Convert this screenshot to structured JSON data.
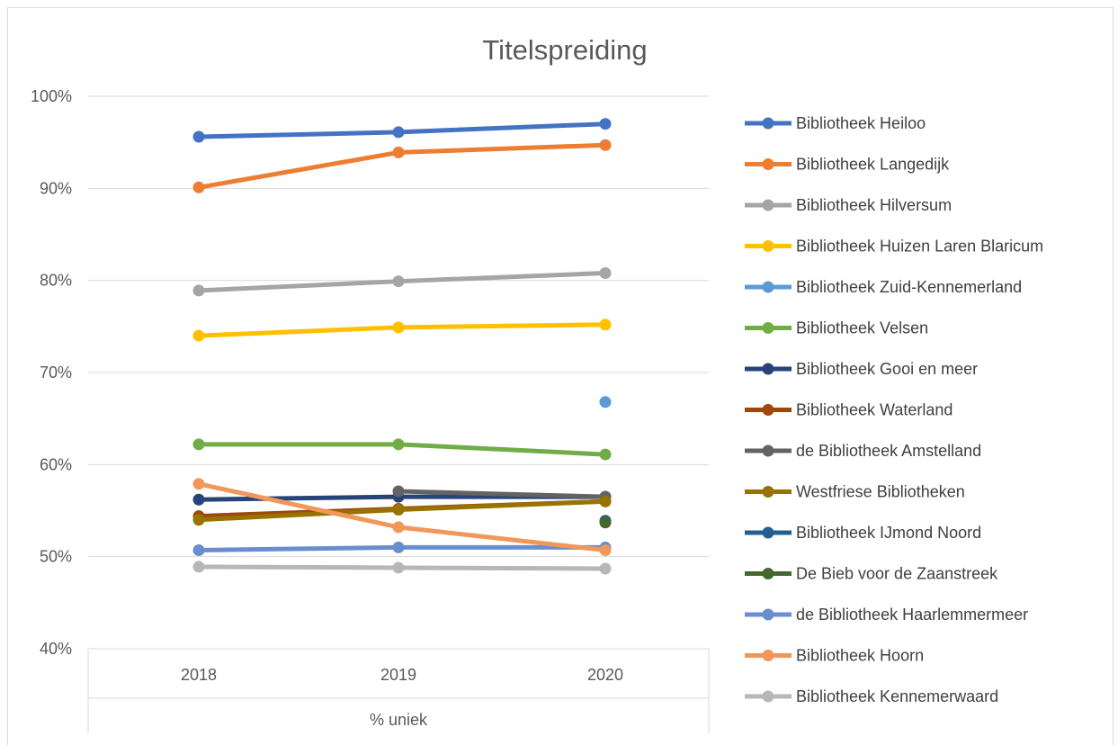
{
  "chart_data": {
    "type": "line",
    "title": "Titelspreiding",
    "xlabel": "% uniek",
    "ylabel": "",
    "categories": [
      "2018",
      "2019",
      "2020"
    ],
    "ylim": [
      0.4,
      1.0
    ],
    "y_ticks": [
      "40%",
      "50%",
      "60%",
      "70%",
      "80%",
      "90%",
      "100%"
    ],
    "y_tick_values": [
      0.4,
      0.5,
      0.6,
      0.7,
      0.8,
      0.9,
      1.0
    ],
    "grid": true,
    "legend_position": "right",
    "series": [
      {
        "name": "Bibliotheek Heiloo",
        "color": "#4472c4",
        "values": [
          0.956,
          0.961,
          0.97
        ]
      },
      {
        "name": "Bibliotheek Langedijk",
        "color": "#ed7d31",
        "values": [
          0.901,
          0.939,
          0.947
        ]
      },
      {
        "name": "Bibliotheek Hilversum",
        "color": "#a5a5a5",
        "values": [
          0.789,
          0.799,
          0.808
        ]
      },
      {
        "name": "Bibliotheek Huizen Laren Blaricum",
        "color": "#ffc000",
        "values": [
          0.74,
          0.749,
          0.752
        ]
      },
      {
        "name": "Bibliotheek Zuid-Kennemerland",
        "color": "#5b9bd5",
        "values": [
          null,
          null,
          0.668
        ]
      },
      {
        "name": "Bibliotheek Velsen",
        "color": "#70ad47",
        "values": [
          0.622,
          0.622,
          0.611
        ]
      },
      {
        "name": "Bibliotheek Gooi en meer",
        "color": "#264478",
        "values": [
          0.562,
          0.565,
          0.565
        ]
      },
      {
        "name": "Bibliotheek Waterland",
        "color": "#9e480e",
        "values": [
          0.544,
          0.552,
          0.56
        ]
      },
      {
        "name": "de Bibliotheek Amstelland",
        "color": "#636363",
        "values": [
          null,
          0.571,
          0.565
        ]
      },
      {
        "name": "Westfriese Bibliotheken",
        "color": "#997300",
        "values": [
          0.54,
          0.551,
          0.56
        ]
      },
      {
        "name": "Bibliotheek IJmond Noord",
        "color": "#255e91",
        "values": [
          null,
          null,
          0.539
        ]
      },
      {
        "name": "De Bieb voor de Zaanstreek",
        "color": "#43682b",
        "values": [
          null,
          null,
          0.537
        ]
      },
      {
        "name": "de Bibliotheek Haarlemmermeer",
        "color": "#698ed0",
        "values": [
          0.507,
          0.51,
          0.51
        ]
      },
      {
        "name": "Bibliotheek Hoorn",
        "color": "#f1975a",
        "values": [
          0.579,
          0.532,
          0.507
        ]
      },
      {
        "name": "Bibliotheek Kennemerwaard",
        "color": "#b7b7b7",
        "values": [
          0.489,
          0.488,
          0.487
        ]
      }
    ]
  }
}
